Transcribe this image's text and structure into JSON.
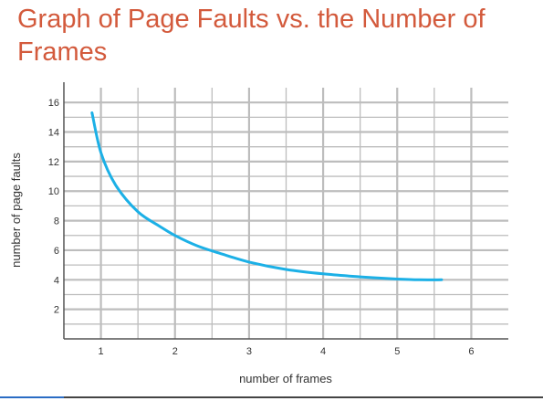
{
  "title": "Graph of Page Faults vs. the Number of Frames",
  "colors": {
    "title": "#d35a3c",
    "curve": "#1cb0e6",
    "grid": "#bdbdbd",
    "axis": "#555555"
  },
  "chart_data": {
    "type": "line",
    "title": "",
    "xlabel": "number of frames",
    "ylabel": "number of page faults",
    "xlim": [
      0.5,
      6.5
    ],
    "ylim": [
      0,
      17
    ],
    "x_ticks": [
      1,
      2,
      3,
      4,
      5,
      6
    ],
    "y_ticks": [
      2,
      4,
      6,
      8,
      10,
      12,
      14,
      16
    ],
    "grid": true,
    "legend": "none",
    "series": [
      {
        "x": [
          0.88,
          1.0,
          1.2,
          1.5,
          1.8,
          2.0,
          2.3,
          2.6,
          3.0,
          3.5,
          4.0,
          4.5,
          5.0,
          5.3,
          5.6
        ],
        "y": [
          15.3,
          12.6,
          10.4,
          8.6,
          7.6,
          7.0,
          6.3,
          5.8,
          5.2,
          4.7,
          4.4,
          4.2,
          4.05,
          4.0,
          4.0
        ]
      }
    ]
  }
}
